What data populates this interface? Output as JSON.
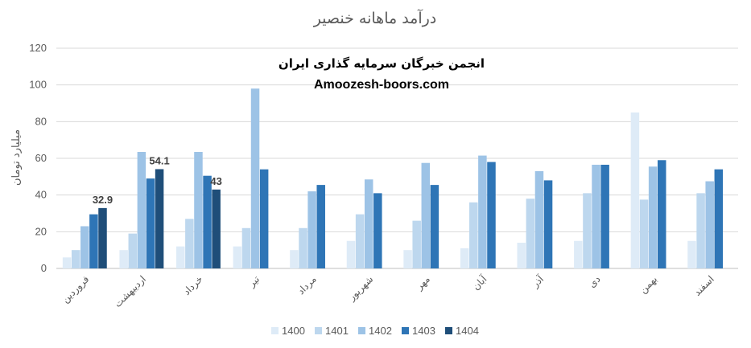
{
  "chart_data": {
    "type": "bar",
    "title": "درآمد ماهانه خنصیر",
    "ylabel": "میلیارد تومان",
    "xlabel": "",
    "ylim": [
      0,
      120
    ],
    "yticks": [
      0,
      20,
      40,
      60,
      80,
      100,
      120
    ],
    "grid": true,
    "legend_position": "bottom",
    "categories": [
      "فروردین",
      "اردیبهشت",
      "خرداد",
      "تیر",
      "مرداد",
      "شهریور",
      "مهر",
      "آبان",
      "آذر",
      "دی",
      "بهمن",
      "اسفند"
    ],
    "series": [
      {
        "name": "1400",
        "color": "#deebf7",
        "values": [
          6,
          10,
          12,
          12,
          10,
          15,
          10,
          11,
          14,
          15,
          85,
          15
        ]
      },
      {
        "name": "1401",
        "color": "#bdd7ee",
        "values": [
          10,
          19,
          27,
          22,
          22,
          29.5,
          26,
          36,
          38,
          41,
          37.5,
          41
        ]
      },
      {
        "name": "1402",
        "color": "#9dc3e6",
        "values": [
          23,
          63.5,
          63.5,
          98,
          42,
          48.5,
          57.5,
          61.5,
          53,
          56.5,
          55.5,
          47.5
        ]
      },
      {
        "name": "1403",
        "color": "#2e75b6",
        "values": [
          29.5,
          49,
          50.5,
          54,
          45.5,
          41,
          45.5,
          58,
          48,
          56.5,
          59,
          54
        ]
      },
      {
        "name": "1404",
        "color": "#1f4e79",
        "values": [
          32.9,
          54.1,
          43,
          null,
          null,
          null,
          null,
          null,
          null,
          null,
          null,
          null
        ]
      }
    ],
    "data_labels": [
      {
        "series": "1404",
        "category": "فروردین",
        "text": "32.9"
      },
      {
        "series": "1404",
        "category": "اردیبهشت",
        "text": "54.1"
      },
      {
        "series": "1404",
        "category": "خرداد",
        "text": "43"
      }
    ]
  },
  "watermark": {
    "line1": "انجمن خبرگان سرمایه گذاری ایران",
    "line2": "Amoozesh-boors.com"
  }
}
